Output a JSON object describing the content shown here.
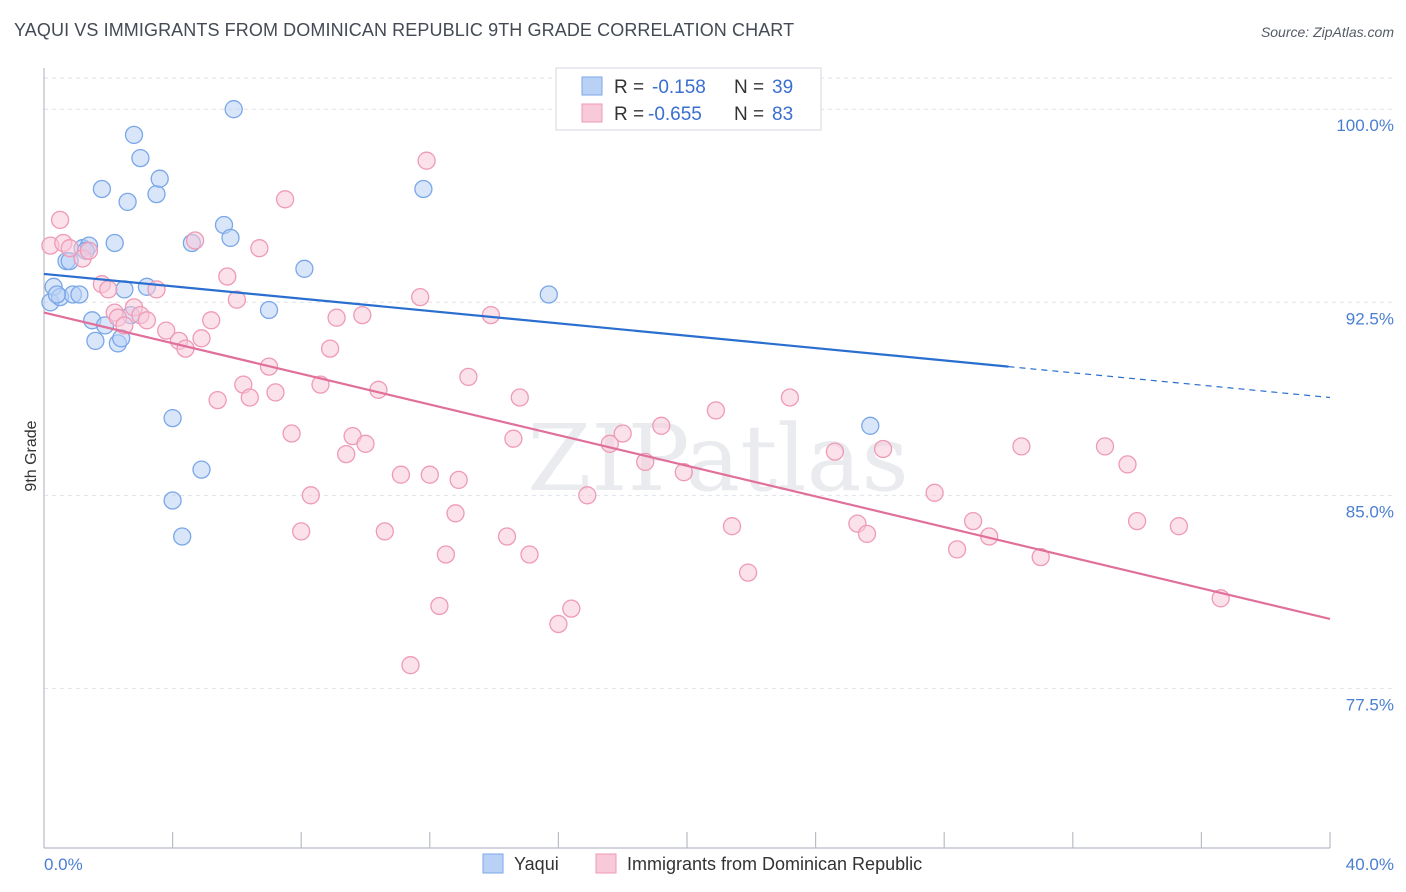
{
  "title": "YAQUI VS IMMIGRANTS FROM DOMINICAN REPUBLIC 9TH GRADE CORRELATION CHART",
  "source": "Source: ZipAtlas.com",
  "watermark": "ZIPatlas",
  "chart_data": {
    "type": "scatter",
    "title": "YAQUI VS IMMIGRANTS FROM DOMINICAN REPUBLIC 9TH GRADE CORRELATION CHART",
    "xlabel": "",
    "ylabel": "9th Grade",
    "xlim": [
      0,
      40
    ],
    "ylim": [
      71.3,
      101.6
    ],
    "x_tick_labels": [
      "0.0%",
      "40.0%"
    ],
    "y_ticks": [
      77.5,
      85.0,
      92.5,
      100.0
    ],
    "y_tick_labels": [
      "77.5%",
      "85.0%",
      "92.5%",
      "100.0%"
    ],
    "grid": true,
    "legend": {
      "position": "top-center",
      "entries": [
        {
          "r_label": "R =",
          "r_value": "-0.158",
          "n_label": "N =",
          "n_value": "39"
        },
        {
          "r_label": "R =",
          "r_value": "-0.655",
          "n_label": "N =",
          "n_value": "83"
        }
      ]
    },
    "series": [
      {
        "name": "Yaqui",
        "color": "#7aa7e8",
        "fill": "#b9d1f5",
        "line_color": "#2a6fd0",
        "trend": {
          "x0": 0,
          "y0": 93.6,
          "x1": 30,
          "y1": 90.0,
          "dash_x1": 40,
          "dash_y1": 88.8
        },
        "points": [
          [
            0.2,
            92.5
          ],
          [
            0.3,
            93.1
          ],
          [
            0.5,
            92.7
          ],
          [
            0.7,
            94.1
          ],
          [
            0.9,
            92.8
          ],
          [
            1.2,
            94.6
          ],
          [
            1.1,
            92.8
          ],
          [
            1.4,
            94.7
          ],
          [
            1.5,
            91.8
          ],
          [
            1.6,
            91.0
          ],
          [
            1.8,
            96.9
          ],
          [
            1.9,
            91.6
          ],
          [
            2.2,
            94.8
          ],
          [
            2.3,
            90.9
          ],
          [
            2.4,
            91.1
          ],
          [
            2.5,
            93.0
          ],
          [
            2.6,
            96.4
          ],
          [
            2.7,
            92.0
          ],
          [
            2.8,
            99.0
          ],
          [
            3.0,
            98.1
          ],
          [
            3.2,
            93.1
          ],
          [
            3.5,
            96.7
          ],
          [
            3.6,
            97.3
          ],
          [
            4.0,
            88.0
          ],
          [
            4.0,
            84.8
          ],
          [
            4.3,
            83.4
          ],
          [
            4.6,
            94.8
          ],
          [
            4.9,
            86.0
          ],
          [
            5.6,
            95.5
          ],
          [
            5.8,
            95.0
          ],
          [
            5.9,
            100.0
          ],
          [
            7.0,
            92.2
          ],
          [
            8.1,
            93.8
          ],
          [
            11.8,
            96.9
          ],
          [
            15.7,
            92.8
          ],
          [
            25.7,
            87.7
          ],
          [
            0.4,
            92.8
          ],
          [
            0.8,
            94.1
          ],
          [
            1.3,
            94.5
          ]
        ]
      },
      {
        "name": "Immigrants from Dominican Republic",
        "color": "#ef9ab6",
        "fill": "#f8c9d8",
        "line_color": "#e0709a",
        "trend": {
          "x0": 0,
          "y0": 92.1,
          "x1": 40,
          "y1": 80.2
        },
        "points": [
          [
            0.2,
            94.7
          ],
          [
            0.5,
            95.7
          ],
          [
            0.6,
            94.8
          ],
          [
            0.8,
            94.6
          ],
          [
            1.2,
            94.2
          ],
          [
            1.4,
            94.5
          ],
          [
            1.8,
            93.2
          ],
          [
            2.0,
            93.0
          ],
          [
            2.2,
            92.1
          ],
          [
            2.3,
            91.9
          ],
          [
            2.5,
            91.6
          ],
          [
            2.8,
            92.3
          ],
          [
            3.0,
            92.0
          ],
          [
            3.2,
            91.8
          ],
          [
            3.5,
            93.0
          ],
          [
            3.8,
            91.4
          ],
          [
            4.2,
            91.0
          ],
          [
            4.4,
            90.7
          ],
          [
            4.7,
            94.9
          ],
          [
            4.9,
            91.1
          ],
          [
            5.2,
            91.8
          ],
          [
            5.4,
            88.7
          ],
          [
            5.7,
            93.5
          ],
          [
            6.0,
            92.6
          ],
          [
            6.2,
            89.3
          ],
          [
            6.4,
            88.8
          ],
          [
            6.7,
            94.6
          ],
          [
            7.0,
            90.0
          ],
          [
            7.2,
            89.0
          ],
          [
            7.5,
            96.5
          ],
          [
            7.7,
            87.4
          ],
          [
            8.0,
            83.6
          ],
          [
            8.3,
            85.0
          ],
          [
            8.6,
            89.3
          ],
          [
            8.9,
            90.7
          ],
          [
            9.1,
            91.9
          ],
          [
            9.4,
            86.6
          ],
          [
            9.6,
            87.3
          ],
          [
            9.9,
            92.0
          ],
          [
            10.0,
            87.0
          ],
          [
            10.4,
            89.1
          ],
          [
            10.6,
            83.6
          ],
          [
            11.1,
            85.8
          ],
          [
            11.4,
            78.4
          ],
          [
            11.7,
            92.7
          ],
          [
            11.9,
            98.0
          ],
          [
            12.0,
            85.8
          ],
          [
            12.3,
            80.7
          ],
          [
            12.5,
            82.7
          ],
          [
            12.8,
            84.3
          ],
          [
            12.9,
            85.6
          ],
          [
            13.2,
            89.6
          ],
          [
            13.9,
            92.0
          ],
          [
            14.4,
            83.4
          ],
          [
            14.6,
            87.2
          ],
          [
            14.8,
            88.8
          ],
          [
            15.1,
            82.7
          ],
          [
            16.0,
            80.0
          ],
          [
            16.4,
            80.6
          ],
          [
            16.9,
            85.0
          ],
          [
            17.6,
            87.0
          ],
          [
            18.0,
            87.4
          ],
          [
            18.7,
            86.3
          ],
          [
            19.2,
            87.7
          ],
          [
            19.9,
            85.9
          ],
          [
            20.9,
            88.3
          ],
          [
            21.4,
            83.8
          ],
          [
            21.9,
            82.0
          ],
          [
            23.2,
            88.8
          ],
          [
            24.6,
            86.7
          ],
          [
            25.3,
            83.9
          ],
          [
            25.6,
            83.5
          ],
          [
            26.1,
            86.8
          ],
          [
            27.7,
            85.1
          ],
          [
            28.4,
            82.9
          ],
          [
            28.9,
            84.0
          ],
          [
            29.4,
            83.4
          ],
          [
            30.4,
            86.9
          ],
          [
            31.0,
            82.6
          ],
          [
            33.0,
            86.9
          ],
          [
            33.7,
            86.2
          ],
          [
            34.0,
            84.0
          ],
          [
            35.3,
            83.8
          ],
          [
            36.6,
            81.0
          ]
        ]
      }
    ]
  },
  "bottom_legend": [
    {
      "label": "Yaqui"
    },
    {
      "label": "Immigrants from Dominican Republic"
    }
  ]
}
